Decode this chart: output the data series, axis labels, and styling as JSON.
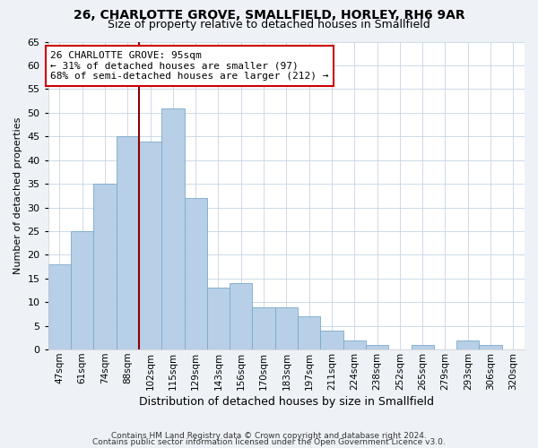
{
  "title": "26, CHARLOTTE GROVE, SMALLFIELD, HORLEY, RH6 9AR",
  "subtitle": "Size of property relative to detached houses in Smallfield",
  "xlabel": "Distribution of detached houses by size in Smallfield",
  "ylabel": "Number of detached properties",
  "bin_labels": [
    "47sqm",
    "61sqm",
    "74sqm",
    "88sqm",
    "102sqm",
    "115sqm",
    "129sqm",
    "143sqm",
    "156sqm",
    "170sqm",
    "183sqm",
    "197sqm",
    "211sqm",
    "224sqm",
    "238sqm",
    "252sqm",
    "265sqm",
    "279sqm",
    "293sqm",
    "306sqm",
    "320sqm"
  ],
  "bar_values": [
    18,
    25,
    35,
    45,
    44,
    51,
    32,
    13,
    14,
    9,
    9,
    7,
    4,
    2,
    1,
    0,
    1,
    0,
    2,
    1,
    0
  ],
  "bar_color": "#b8cfe8",
  "bar_edgecolor": "#7aaac8",
  "vline_x": 3.5,
  "vline_color": "#8b0000",
  "annotation_text": "26 CHARLOTTE GROVE: 95sqm\n← 31% of detached houses are smaller (97)\n68% of semi-detached houses are larger (212) →",
  "annotation_box_edgecolor": "#cc0000",
  "ylim": [
    0,
    65
  ],
  "yticks": [
    0,
    5,
    10,
    15,
    20,
    25,
    30,
    35,
    40,
    45,
    50,
    55,
    60,
    65
  ],
  "footer1": "Contains HM Land Registry data © Crown copyright and database right 2024.",
  "footer2": "Contains public sector information licensed under the Open Government Licence v3.0.",
  "background_color": "#eef2f7",
  "plot_background": "#ffffff",
  "title_fontsize": 10,
  "subtitle_fontsize": 9,
  "ylabel_fontsize": 8,
  "xlabel_fontsize": 9,
  "tick_fontsize": 8,
  "xtick_fontsize": 7.5,
  "footer_fontsize": 6.5,
  "annotation_fontsize": 8
}
